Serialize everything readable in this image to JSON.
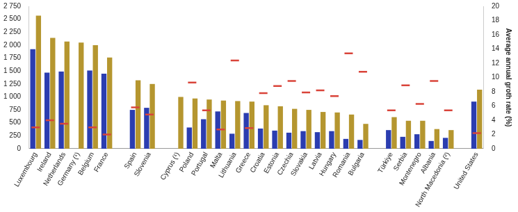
{
  "chart_data": {
    "type": "bar",
    "categories": [
      "Luxembourg",
      "Ireland",
      "Netherlands",
      "Germany (¹)",
      "Belgium",
      "France",
      null,
      "Spain",
      "Slovenia",
      null,
      "Cyprus (¹)",
      "Poland",
      "Portugal",
      "Malta",
      "Lithuania",
      "Greece",
      "Croatia",
      "Estonia",
      "Czechia",
      "Slovakia",
      "Latvia",
      "Hungary",
      "Romania",
      "Bulgaria",
      null,
      "Türkiye",
      "Serbia",
      "Montenegro",
      "Albania",
      "North Macedonia (²)",
      null,
      "United States"
    ],
    "series": [
      {
        "color": "#2b3db0",
        "values": [
          1920,
          1470,
          1490,
          null,
          1510,
          1450,
          null,
          750,
          790,
          null,
          null,
          410,
          570,
          720,
          290,
          690,
          390,
          350,
          310,
          340,
          320,
          340,
          190,
          170,
          null,
          360,
          230,
          280,
          150,
          210,
          null,
          910
        ]
      },
      {
        "color": "#b5962f",
        "values": [
          2570,
          2140,
          2070,
          2050,
          2000,
          1760,
          null,
          1320,
          1250,
          null,
          1000,
          970,
          950,
          930,
          920,
          910,
          840,
          820,
          770,
          750,
          710,
          700,
          660,
          480,
          null,
          610,
          540,
          540,
          380,
          360,
          null,
          1140
        ]
      },
      {
        "color": "#d9443a",
        "type": "line",
        "marker": "dash",
        "line_style": "none",
        "axis": "y2",
        "values": [
          3.0,
          4.0,
          3.5,
          null,
          3.0,
          2.0,
          null,
          5.8,
          4.8,
          null,
          null,
          9.3,
          5.4,
          2.7,
          12.4,
          2.9,
          7.8,
          8.8,
          9.5,
          7.9,
          8.2,
          7.4,
          13.4,
          10.8,
          null,
          5.4,
          8.9,
          6.3,
          9.5,
          5.4,
          null,
          2.2
        ]
      }
    ],
    "ylim": [
      0,
      2750
    ],
    "yticks": [
      0,
      250,
      500,
      750,
      {
        "value": 1000,
        "label": "1 000"
      },
      {
        "value": 1250,
        "label": "1 250"
      },
      {
        "value": 1500,
        "label": "1 500"
      },
      {
        "value": 1750,
        "label": "1 750"
      },
      {
        "value": 2000,
        "label": "2 000"
      },
      {
        "value": 2250,
        "label": "2 250"
      },
      {
        "value": 2500,
        "label": "2 500"
      },
      {
        "value": 2750,
        "label": "2 750"
      }
    ],
    "y2lim": [
      0,
      20
    ],
    "y2ticks": [
      0,
      2,
      4,
      6,
      8,
      10,
      12,
      14,
      16,
      18,
      20
    ],
    "y2_label": "Average annual groth rate (%)",
    "grid": false
  }
}
